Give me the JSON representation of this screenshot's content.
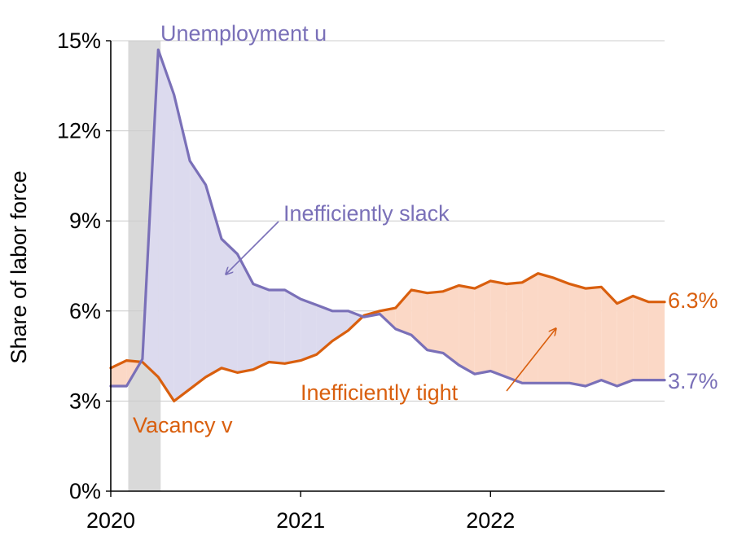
{
  "chart_data": {
    "type": "line",
    "title": "",
    "xlabel": "",
    "ylabel": "Share of labor force",
    "ylim": [
      0,
      15
    ],
    "y_ticks": [
      "0%",
      "3%",
      "6%",
      "9%",
      "12%",
      "15%"
    ],
    "y_tick_values": [
      0,
      3,
      6,
      9,
      12,
      15
    ],
    "x_ticks": [
      "2020",
      "2021",
      "2022"
    ],
    "x_tick_values": [
      "2020-01",
      "2021-01",
      "2022-01"
    ],
    "grid": "horizontal",
    "recession_shading": {
      "start": "2020-02",
      "end": "2020-04"
    },
    "months": [
      "2020-01",
      "2020-02",
      "2020-03",
      "2020-04",
      "2020-05",
      "2020-06",
      "2020-07",
      "2020-08",
      "2020-09",
      "2020-10",
      "2020-11",
      "2020-12",
      "2021-01",
      "2021-02",
      "2021-03",
      "2021-04",
      "2021-05",
      "2021-06",
      "2021-07",
      "2021-08",
      "2021-09",
      "2021-10",
      "2021-11",
      "2021-12",
      "2022-01",
      "2022-02",
      "2022-03",
      "2022-04",
      "2022-05",
      "2022-06",
      "2022-07",
      "2022-08",
      "2022-09",
      "2022-10",
      "2022-11",
      "2022-12"
    ],
    "series": [
      {
        "name": "Unemployment u",
        "color": "#7a70b8",
        "values": [
          3.5,
          3.5,
          4.4,
          14.7,
          13.2,
          11.0,
          10.2,
          8.4,
          7.9,
          6.9,
          6.7,
          6.7,
          6.4,
          6.2,
          6.0,
          6.0,
          5.8,
          5.9,
          5.4,
          5.2,
          4.7,
          4.6,
          4.2,
          3.9,
          4.0,
          3.8,
          3.6,
          3.6,
          3.6,
          3.6,
          3.5,
          3.7,
          3.5,
          3.7,
          3.7,
          3.7
        ],
        "end_label": "3.7%"
      },
      {
        "name": "Vacancy v",
        "color": "#d95f0e",
        "values": [
          4.1,
          4.35,
          4.3,
          3.8,
          3.0,
          3.4,
          3.8,
          4.1,
          3.95,
          4.05,
          4.3,
          4.25,
          4.35,
          4.55,
          5.0,
          5.35,
          5.85,
          6.0,
          6.1,
          6.7,
          6.6,
          6.65,
          6.85,
          6.75,
          7.0,
          6.9,
          6.95,
          7.25,
          7.1,
          6.9,
          6.75,
          6.8,
          6.25,
          6.5,
          6.3,
          6.3
        ],
        "end_label": "6.3%"
      }
    ],
    "annotations": {
      "unemployment_label": "Unemployment u",
      "vacancy_label": "Vacancy v",
      "slack_label": "Inefficiently slack",
      "tight_label": "Inefficiently tight"
    },
    "fill_colors": {
      "slack": "#dcdaee",
      "tight": "#fbd8c6",
      "recession": "#d9d9d9",
      "grid": "#cccccc"
    }
  }
}
